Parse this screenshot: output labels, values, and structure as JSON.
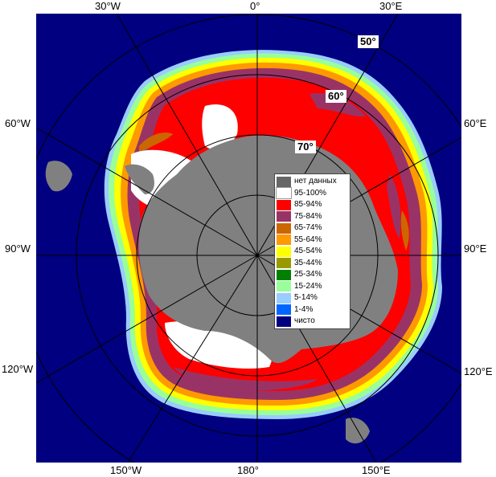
{
  "lon_labels": {
    "top": [
      "30°W",
      "0°",
      "30°E"
    ],
    "left": [
      "60°W",
      "90°W",
      "120°W"
    ],
    "right": [
      "60°E",
      "90°E",
      "120°E"
    ],
    "bottom": [
      "150°W",
      "180°",
      "150°E"
    ]
  },
  "lat_labels": [
    "50°",
    "60°",
    "70°"
  ],
  "legend": [
    {
      "label": "нет данных",
      "color": "#666666"
    },
    {
      "label": "95-100%",
      "color": "#ffffff"
    },
    {
      "label": "85-94%",
      "color": "#ff0000"
    },
    {
      "label": "75-84%",
      "color": "#993366"
    },
    {
      "label": "65-74%",
      "color": "#cc6600"
    },
    {
      "label": "55-64%",
      "color": "#ff9900"
    },
    {
      "label": "45-54%",
      "color": "#ffff00"
    },
    {
      "label": "35-44%",
      "color": "#999900"
    },
    {
      "label": "25-34%",
      "color": "#008000"
    },
    {
      "label": "15-24%",
      "color": "#99ff99"
    },
    {
      "label": "5-14%",
      "color": "#99ccff"
    },
    {
      "label": "1-4%",
      "color": "#0066ff"
    },
    {
      "label": "чисто",
      "color": "#000080"
    }
  ]
}
